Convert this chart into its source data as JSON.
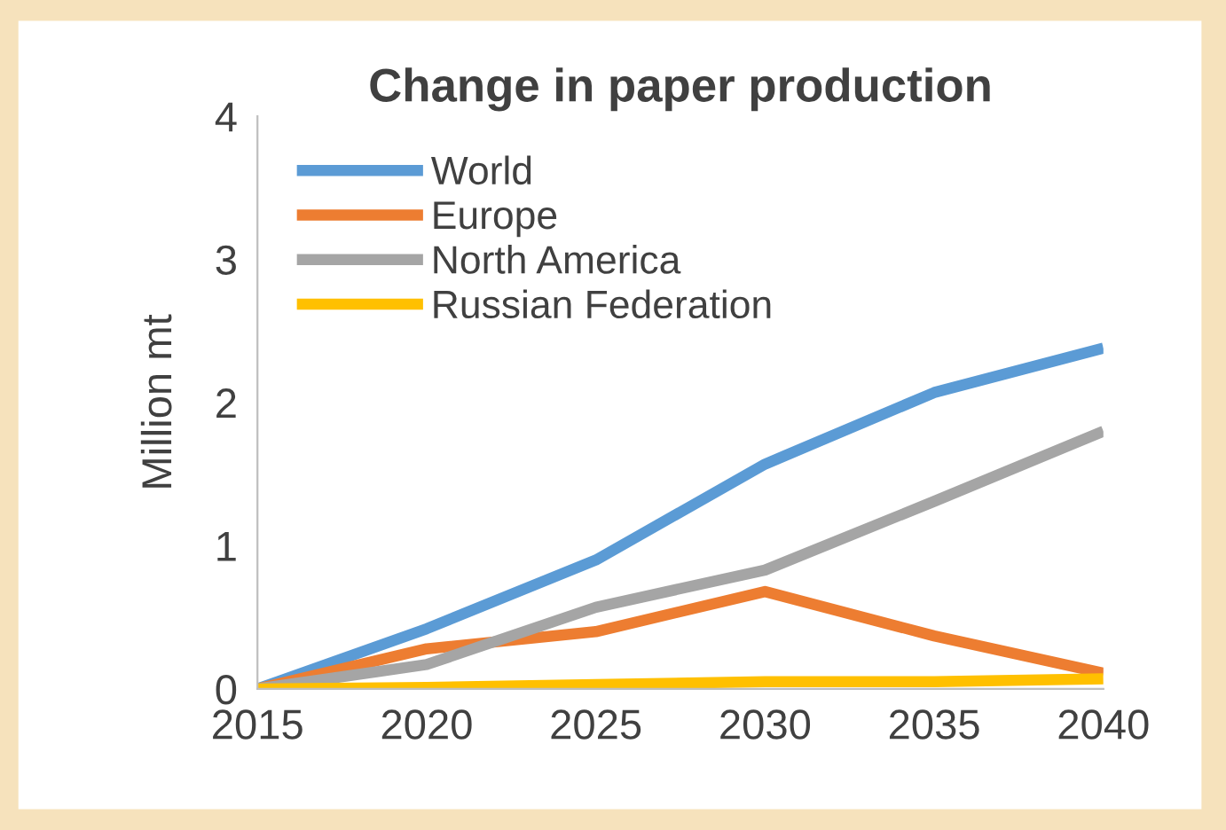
{
  "chart_data": {
    "type": "line",
    "title": "Change in paper production",
    "ylabel": "Million mt",
    "x": [
      2015,
      2020,
      2025,
      2030,
      2035,
      2040
    ],
    "series": [
      {
        "name": "World",
        "color": "#5b9bd5",
        "values": [
          0,
          0.42,
          0.9,
          1.57,
          2.07,
          2.38
        ]
      },
      {
        "name": "Europe",
        "color": "#ed7d31",
        "values": [
          0,
          0.28,
          0.4,
          0.68,
          0.37,
          0.11
        ]
      },
      {
        "name": "North America",
        "color": "#a5a5a5",
        "values": [
          0,
          0.17,
          0.57,
          0.83,
          1.31,
          1.8
        ]
      },
      {
        "name": "Russian Federation",
        "color": "#ffc000",
        "values": [
          0,
          0.01,
          0.03,
          0.05,
          0.05,
          0.07
        ]
      }
    ],
    "xlim": [
      2015,
      2040
    ],
    "xticks": [
      2015,
      2020,
      2025,
      2030,
      2035,
      2040
    ],
    "ylim": [
      0,
      4
    ],
    "yticks": [
      0,
      1,
      2,
      3,
      4
    ],
    "grid": false,
    "legend": "top left",
    "marker": "none",
    "line_style": "solid"
  }
}
